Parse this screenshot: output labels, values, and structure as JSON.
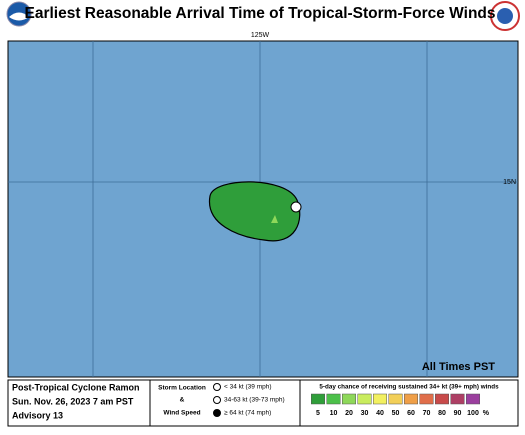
{
  "header": {
    "title": "Earliest Reasonable Arrival Time of Tropical-Storm-Force Winds"
  },
  "map": {
    "lon_label": "125W",
    "lat_label": "15N",
    "note": "All Times PST"
  },
  "info": {
    "storm": "Post-Tropical Cyclone Ramon",
    "time": "Sun. Nov. 26, 2023  7 am PST",
    "advisory": "Advisory 13"
  },
  "key": {
    "heading": [
      "Storm Location",
      "&",
      "Wind Speed"
    ],
    "items": [
      "< 34 kt (39 mph)",
      "34-63 kt (39-73 mph)",
      "≥ 64 kt (74 mph)"
    ]
  },
  "scale": {
    "title": "5-day chance of receiving sustained 34+ kt (39+ mph) winds",
    "labels": [
      "5",
      "10",
      "20",
      "30",
      "40",
      "50",
      "60",
      "70",
      "80",
      "90",
      "100"
    ],
    "unit": "%",
    "colors": [
      "#2f9e3a",
      "#4cc04a",
      "#8ed85a",
      "#c9ec5e",
      "#f2f060",
      "#f2cf58",
      "#ef9f48",
      "#e06e4a",
      "#c84a4a",
      "#ad3f64",
      "#9b3f9e"
    ]
  }
}
